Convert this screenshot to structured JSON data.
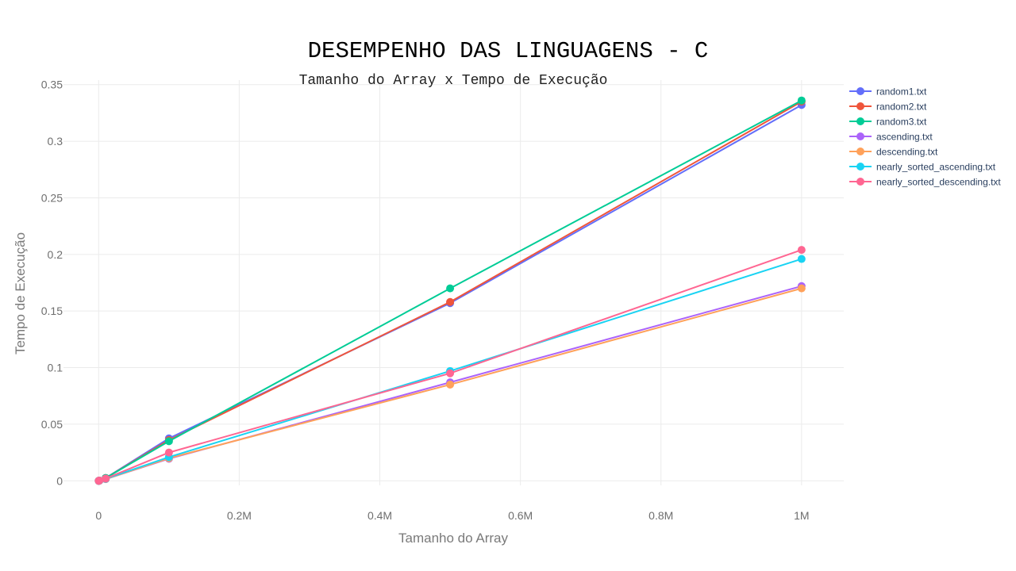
{
  "chart_data": {
    "type": "line",
    "title": "DESEMPENHO DAS LINGUAGENS - C",
    "subtitle": "Tamanho do Array x Tempo de Execução",
    "xlabel": "Tamanho do Array",
    "ylabel": "Tempo de Execução",
    "xlim": [
      -50000,
      1060000
    ],
    "ylim": [
      -0.004,
      0.354
    ],
    "x_ticks": [
      {
        "value": 0,
        "label": "0"
      },
      {
        "value": 200000,
        "label": "0.2M"
      },
      {
        "value": 400000,
        "label": "0.4M"
      },
      {
        "value": 600000,
        "label": "0.6M"
      },
      {
        "value": 800000,
        "label": "0.8M"
      },
      {
        "value": 1000000,
        "label": "1M"
      }
    ],
    "y_ticks": [
      {
        "value": 0,
        "label": "0"
      },
      {
        "value": 0.05,
        "label": "0.05"
      },
      {
        "value": 0.1,
        "label": "0.1"
      },
      {
        "value": 0.15,
        "label": "0.15"
      },
      {
        "value": 0.2,
        "label": "0.2"
      },
      {
        "value": 0.25,
        "label": "0.25"
      },
      {
        "value": 0.3,
        "label": "0.3"
      },
      {
        "value": 0.35,
        "label": "0.35"
      }
    ],
    "grid": true,
    "legend_position": "top-right",
    "x": [
      100,
      1000,
      10000,
      100000,
      500000,
      1000000
    ],
    "series": [
      {
        "name": "random1.txt",
        "color": "#636efa",
        "values": [
          0,
          0.0002,
          0.0025,
          0.0375,
          0.157,
          0.332
        ]
      },
      {
        "name": "random2.txt",
        "color": "#ef553b",
        "values": [
          0,
          0.0002,
          0.0025,
          0.036,
          0.158,
          0.335
        ]
      },
      {
        "name": "random3.txt",
        "color": "#00cc96",
        "values": [
          0,
          0.0002,
          0.0025,
          0.035,
          0.17,
          0.336
        ]
      },
      {
        "name": "ascending.txt",
        "color": "#ab63fa",
        "values": [
          0,
          0.0001,
          0.0015,
          0.0195,
          0.087,
          0.172
        ]
      },
      {
        "name": "descending.txt",
        "color": "#ffa15a",
        "values": [
          0,
          0.0001,
          0.0015,
          0.02,
          0.085,
          0.17
        ]
      },
      {
        "name": "nearly_sorted_ascending.txt",
        "color": "#19d3f3",
        "values": [
          0,
          0.0001,
          0.0017,
          0.021,
          0.097,
          0.196
        ]
      },
      {
        "name": "nearly_sorted_descending.txt",
        "color": "#ff6692",
        "values": [
          0,
          0.0002,
          0.002,
          0.025,
          0.095,
          0.204
        ]
      }
    ]
  }
}
